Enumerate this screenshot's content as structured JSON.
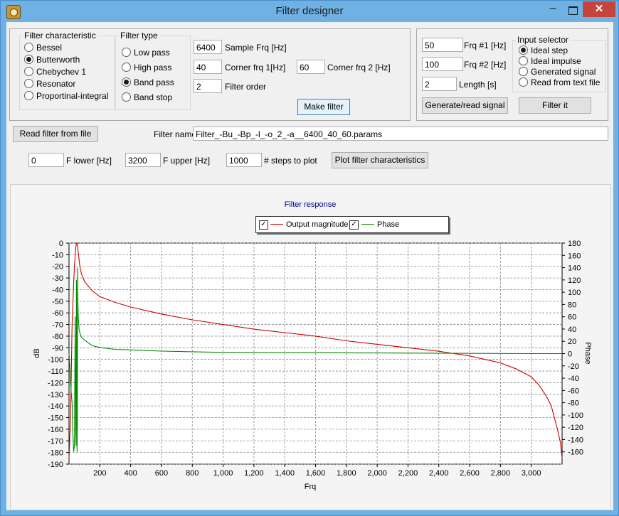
{
  "window": {
    "title": "Filter designer",
    "minimize": "–",
    "close": "✕"
  },
  "filter_characteristic": {
    "title": "Filter characteristic",
    "options": [
      "Bessel",
      "Butterworth",
      "Chebychev 1",
      "Resonator",
      "Proportinal-integral"
    ],
    "selected": "Butterworth"
  },
  "filter_type": {
    "title": "Filter type",
    "options": [
      "Low pass",
      "High pass",
      "Band pass",
      "Band stop"
    ],
    "selected": "Band pass"
  },
  "params": {
    "sample_frq": "6400",
    "sample_frq_label": "Sample Frq [Hz]",
    "corner1": "40",
    "corner1_label": "Corner frq 1[Hz]",
    "corner2": "60",
    "corner2_label": "Corner frq 2 [Hz]",
    "order": "2",
    "order_label": "Filter order",
    "make_filter": "Make filter"
  },
  "signal": {
    "frq1": "50",
    "frq1_label": "Frq #1 [Hz]",
    "frq2": "100",
    "frq2_label": "Frq #2 [Hz]",
    "length": "2",
    "length_label": "Length [s]",
    "generate": "Generate/read signal",
    "filter_it": "Filter it"
  },
  "input_selector": {
    "title": "Input selector",
    "options": [
      "Ideal step",
      "Ideal impulse",
      "Generated signal",
      "Read from text file"
    ],
    "selected": "Ideal step"
  },
  "file": {
    "read_button": "Read filter from file",
    "name_label": "Filter name",
    "name_value": "Filter_-Bu_-Bp_-l_-o_2_-a__6400_40_60.params"
  },
  "plot_controls": {
    "f_lower": "0",
    "f_lower_label": "F lower [Hz]",
    "f_upper": "3200",
    "f_upper_label": "F upper [Hz]",
    "steps": "1000",
    "steps_label": "# steps to plot",
    "plot_button": "Plot filter characteristics"
  },
  "colors": {
    "magnitude": "#cc0000",
    "phase": "#008800",
    "title": "#00008b",
    "accent": "#6fb1e3"
  },
  "chart_data": {
    "type": "line",
    "title": "Filter response",
    "xlabel": "Frq",
    "ylabel": "dB",
    "y2label": "Phase",
    "xlim": [
      0,
      3200
    ],
    "ylim": [
      -190,
      0
    ],
    "y2lim": [
      -180,
      180
    ],
    "x_ticks": [
      "200",
      "400",
      "600",
      "800",
      "1,000",
      "1,200",
      "1,400",
      "1,600",
      "1,800",
      "2,000",
      "2,200",
      "2,400",
      "2,600",
      "2,800",
      "3,000"
    ],
    "y_ticks": [
      "0",
      "-10",
      "-20",
      "-30",
      "-40",
      "-50",
      "-60",
      "-70",
      "-80",
      "-90",
      "-100",
      "-110",
      "-120",
      "-130",
      "-140",
      "-150",
      "-160",
      "-170",
      "-180",
      "-190"
    ],
    "y2_ticks": [
      "180",
      "160",
      "140",
      "120",
      "100",
      "80",
      "60",
      "40",
      "20",
      "0",
      "-20",
      "-40",
      "-60",
      "-80",
      "-100",
      "-120",
      "-140",
      "-160"
    ],
    "grid": true,
    "legend_position": "top",
    "series": [
      {
        "name": "Output magnitude",
        "axis": "left",
        "x": [
          0,
          10,
          20,
          30,
          35,
          40,
          45,
          48,
          50,
          52,
          55,
          60,
          70,
          80,
          100,
          150,
          200,
          300,
          400,
          600,
          800,
          1000,
          1200,
          1400,
          1600,
          1800,
          2000,
          2200,
          2400,
          2600,
          2800,
          2900,
          3000,
          3050,
          3100,
          3130,
          3150,
          3170,
          3190,
          3200
        ],
        "y": [
          -185,
          -150,
          -70,
          -35,
          -20,
          -10,
          -3,
          -0.5,
          0,
          -0.5,
          -3,
          -8,
          -20,
          -26,
          -33,
          -41,
          -46,
          -51,
          -55,
          -61,
          -66,
          -70,
          -74,
          -77,
          -80,
          -84,
          -87,
          -90,
          -93,
          -97,
          -103,
          -108,
          -115,
          -122,
          -132,
          -140,
          -150,
          -160,
          -172,
          -185
        ]
      },
      {
        "name": "Phase",
        "axis": "right",
        "x": [
          0,
          5,
          10,
          20,
          25,
          30,
          35,
          40,
          42,
          44,
          46,
          48,
          50,
          52,
          54,
          56,
          58,
          60,
          65,
          70,
          80,
          100,
          150,
          200,
          300,
          400,
          600,
          800,
          1000,
          1500,
          2000,
          2500,
          3000,
          3200
        ],
        "y": [
          0,
          -20,
          -50,
          -80,
          -130,
          -160,
          -150,
          60,
          -40,
          -130,
          -150,
          120,
          20,
          -160,
          -110,
          140,
          80,
          60,
          40,
          34,
          27,
          22,
          13,
          10,
          7,
          6,
          4,
          3,
          2,
          1.5,
          1,
          0.5,
          0,
          0
        ]
      }
    ]
  }
}
